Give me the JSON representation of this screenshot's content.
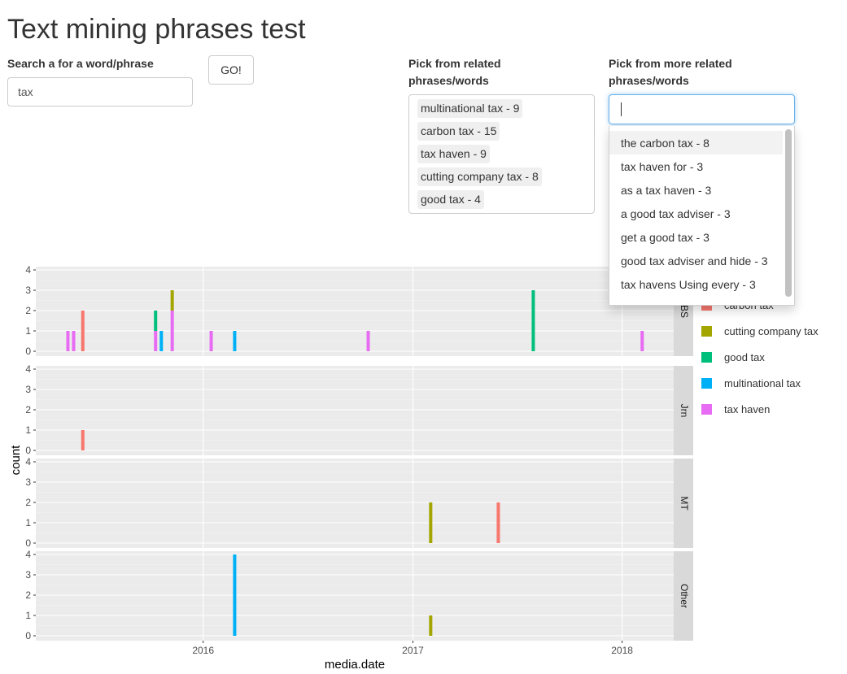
{
  "page": {
    "title": "Text mining phrases test"
  },
  "search": {
    "label": "Search a for a word/phrase",
    "value": "tax",
    "go_label": "GO!"
  },
  "related": {
    "label_line1": "Pick from related",
    "label_line2": "phrases/words",
    "items": [
      "multinational tax - 9",
      "carbon tax - 15",
      "tax haven - 9",
      "cutting company tax - 8",
      "good tax - 4"
    ]
  },
  "more_related": {
    "label_line1": "Pick from more related",
    "label_line2": "phrases/words",
    "value": "",
    "options": [
      "the carbon tax - 8",
      "tax haven for - 3",
      "as a tax haven - 3",
      "a good tax adviser - 3",
      "get a good tax - 3",
      "good tax adviser and hide - 3",
      "tax havens Using every - 3"
    ]
  },
  "legend": {
    "items": [
      {
        "label": "carbon tax",
        "color": "#F8766D"
      },
      {
        "label": "cutting company tax",
        "color": "#A3A500"
      },
      {
        "label": "good tax",
        "color": "#00BF7D"
      },
      {
        "label": "multinational tax",
        "color": "#00B0F6"
      },
      {
        "label": "tax haven",
        "color": "#E76BF3"
      }
    ]
  },
  "chart_data": {
    "type": "bar",
    "xlabel": "media.date",
    "ylabel": "count",
    "x_ticks": [
      "2016",
      "2017",
      "2018"
    ],
    "y_ticks": [
      0,
      1,
      2,
      3,
      4
    ],
    "xlim": [
      "2015-03-15",
      "2018-04-01"
    ],
    "ylim": [
      0,
      4
    ],
    "stacked": true,
    "facets": [
      {
        "label": "BS",
        "bars": [
          {
            "date": "2015-05-10",
            "phrase": "tax haven",
            "count": 1
          },
          {
            "date": "2015-05-20",
            "phrase": "tax haven",
            "count": 1
          },
          {
            "date": "2015-06-05",
            "phrase": "carbon tax",
            "count": 2
          },
          {
            "date": "2015-10-10",
            "phrase": "tax haven",
            "count": 1
          },
          {
            "date": "2015-10-10",
            "phrase": "good tax",
            "count": 1
          },
          {
            "date": "2015-10-20",
            "phrase": "multinational tax",
            "count": 1
          },
          {
            "date": "2015-11-08",
            "phrase": "tax haven",
            "count": 2
          },
          {
            "date": "2015-11-08",
            "phrase": "cutting company tax",
            "count": 1
          },
          {
            "date": "2016-01-15",
            "phrase": "tax haven",
            "count": 1
          },
          {
            "date": "2016-02-25",
            "phrase": "multinational tax",
            "count": 1
          },
          {
            "date": "2016-10-15",
            "phrase": "tax haven",
            "count": 1
          },
          {
            "date": "2017-07-30",
            "phrase": "good tax",
            "count": 3
          },
          {
            "date": "2018-02-05",
            "phrase": "tax haven",
            "count": 1
          }
        ]
      },
      {
        "label": "Jrn",
        "bars": [
          {
            "date": "2015-06-05",
            "phrase": "carbon tax",
            "count": 1
          }
        ]
      },
      {
        "label": "MT",
        "bars": [
          {
            "date": "2017-02-01",
            "phrase": "cutting company tax",
            "count": 2
          },
          {
            "date": "2017-05-30",
            "phrase": "carbon tax",
            "count": 2
          }
        ]
      },
      {
        "label": "Other",
        "bars": [
          {
            "date": "2016-02-25",
            "phrase": "multinational tax",
            "count": 4
          },
          {
            "date": "2017-02-01",
            "phrase": "cutting company tax",
            "count": 1
          }
        ]
      }
    ]
  }
}
